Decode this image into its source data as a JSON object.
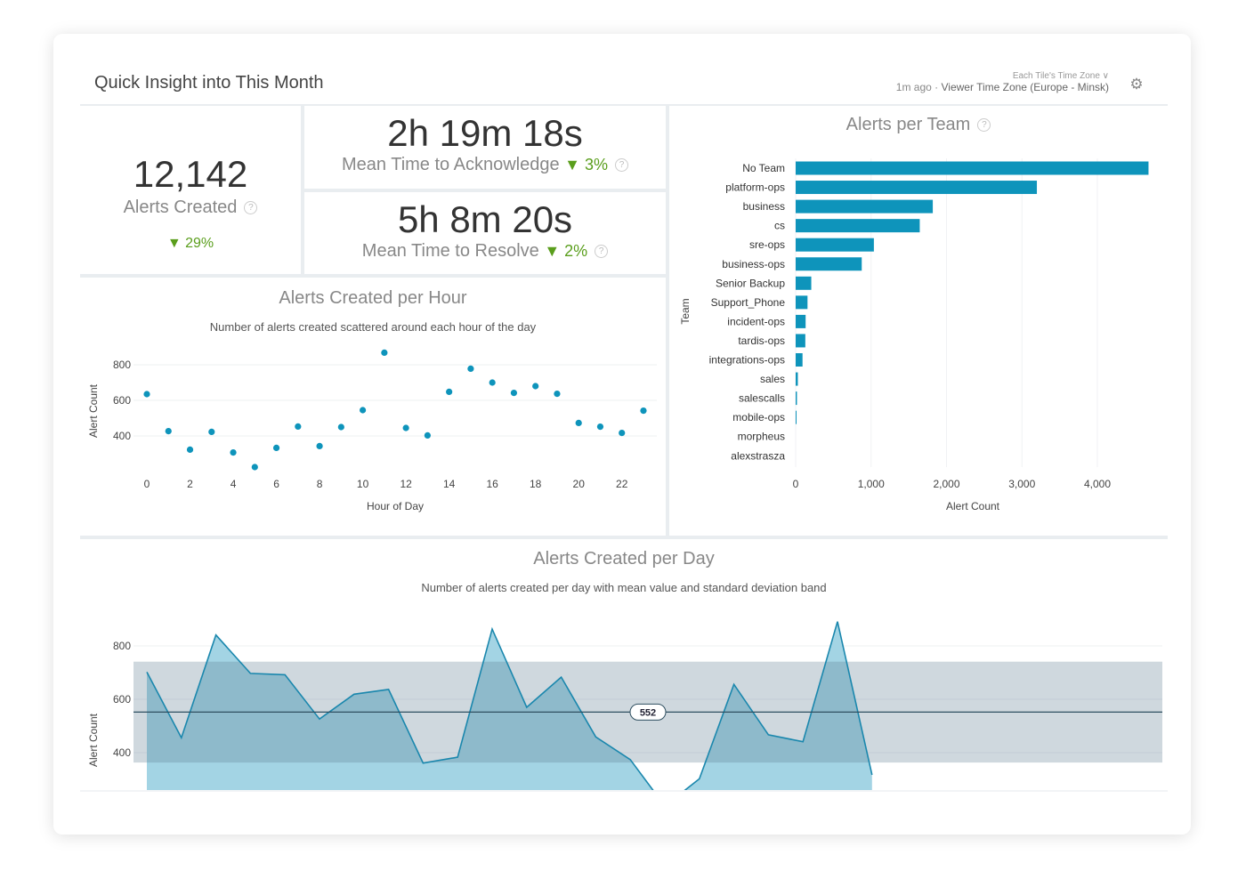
{
  "header": {
    "title": "Quick Insight into This Month",
    "tz_selector": "Each Tile's Time Zone",
    "tz_chevron": "∨",
    "updated": "1m ago",
    "separator": "·",
    "timezone": "Viewer Time Zone (Europe - Minsk)",
    "settings_icon": "gear-icon"
  },
  "kpis": {
    "alerts_created": {
      "value": "12,142",
      "label": "Alerts Created",
      "change": "▼ 29%"
    },
    "mtta": {
      "value": "2h 19m 18s",
      "label": "Mean Time to Acknowledge",
      "change": "▼ 3%"
    },
    "mttr": {
      "value": "5h 8m 20s",
      "label": "Mean Time to Resolve",
      "change": "▼ 2%"
    },
    "help_icon": "?"
  },
  "colors": {
    "accent": "#0e94bb",
    "positive": "#5a9e1c",
    "line": "#1a87ad"
  },
  "chart_data": [
    {
      "type": "scatter",
      "title": "Alerts Created per Hour",
      "subtitle": "Number of alerts created scattered around each hour of the day",
      "xlabel": "Hour of Day",
      "ylabel": "Alert Count",
      "x": [
        0,
        1,
        2,
        3,
        4,
        5,
        6,
        7,
        8,
        9,
        10,
        11,
        12,
        13,
        14,
        15,
        16,
        17,
        18,
        19,
        20,
        21,
        22,
        23
      ],
      "y": [
        635,
        427,
        323,
        423,
        307,
        225,
        333,
        453,
        343,
        450,
        545,
        868,
        445,
        403,
        648,
        778,
        700,
        642,
        680,
        637,
        473,
        452,
        417,
        542
      ],
      "xticks": [
        "0",
        "2",
        "4",
        "6",
        "8",
        "10",
        "12",
        "14",
        "16",
        "18",
        "20",
        "22"
      ],
      "yticks": [
        "400",
        "600",
        "800"
      ],
      "grid": true
    },
    {
      "type": "bar",
      "orientation": "horizontal",
      "title": "Alerts per Team",
      "xlabel": "Alert Count",
      "ylabel": "Team",
      "categories": [
        "No Team",
        "platform-ops",
        "business",
        "cs",
        "sre-ops",
        "business-ops",
        "Senior Backup",
        "Support_Phone",
        "incident-ops",
        "tardis-ops",
        "integrations-ops",
        "sales",
        "salescalls",
        "mobile-ops",
        "morpheus",
        "alexstrasza"
      ],
      "values": [
        4678,
        3198,
        1818,
        1645,
        1037,
        876,
        207,
        157,
        132,
        128,
        91,
        29,
        17,
        2,
        0,
        0
      ],
      "xticks": [
        "0",
        "1,000",
        "2,000",
        "3,000",
        "4,000"
      ],
      "xlim": [
        0,
        4700
      ],
      "grid": true
    },
    {
      "type": "area",
      "title": "Alerts Created per Day",
      "subtitle": "Number of alerts created per day with mean value and standard deviation band",
      "ylabel": "Alert Count",
      "values": [
        702,
        456,
        841,
        697,
        692,
        526,
        619,
        637,
        361,
        383,
        863,
        570,
        683,
        459,
        374,
        200,
        302,
        656,
        467,
        441,
        891,
        317
      ],
      "mean": 552,
      "mean_label": "552",
      "band": [
        363,
        741
      ],
      "yticks": [
        "400",
        "600",
        "800"
      ],
      "ylim": [
        260,
        900
      ],
      "grid": true
    }
  ]
}
